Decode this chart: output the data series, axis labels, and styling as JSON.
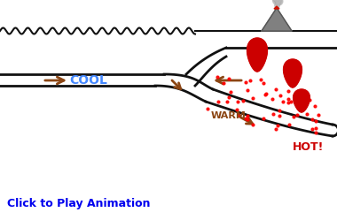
{
  "bg_color": "#ffffff",
  "title_text": "Click to Play Animation",
  "title_color": "#0000ee",
  "title_fontsize": 9,
  "cool_label": "COOL",
  "cool_color": "#4488ff",
  "warm_label": "WARM",
  "warm_color": "#8B4513",
  "hot_label": "HOT!",
  "hot_color": "#cc0000",
  "arrow_color": "#8B4513",
  "line_color": "#111111",
  "dot_color": "#ff0000",
  "magma_color": "#cc0000",
  "volcano_gray": "#808080",
  "smoke_gray": "#aaaaaa",
  "lw_plate": 2.0,
  "lw_wave": 1.5
}
